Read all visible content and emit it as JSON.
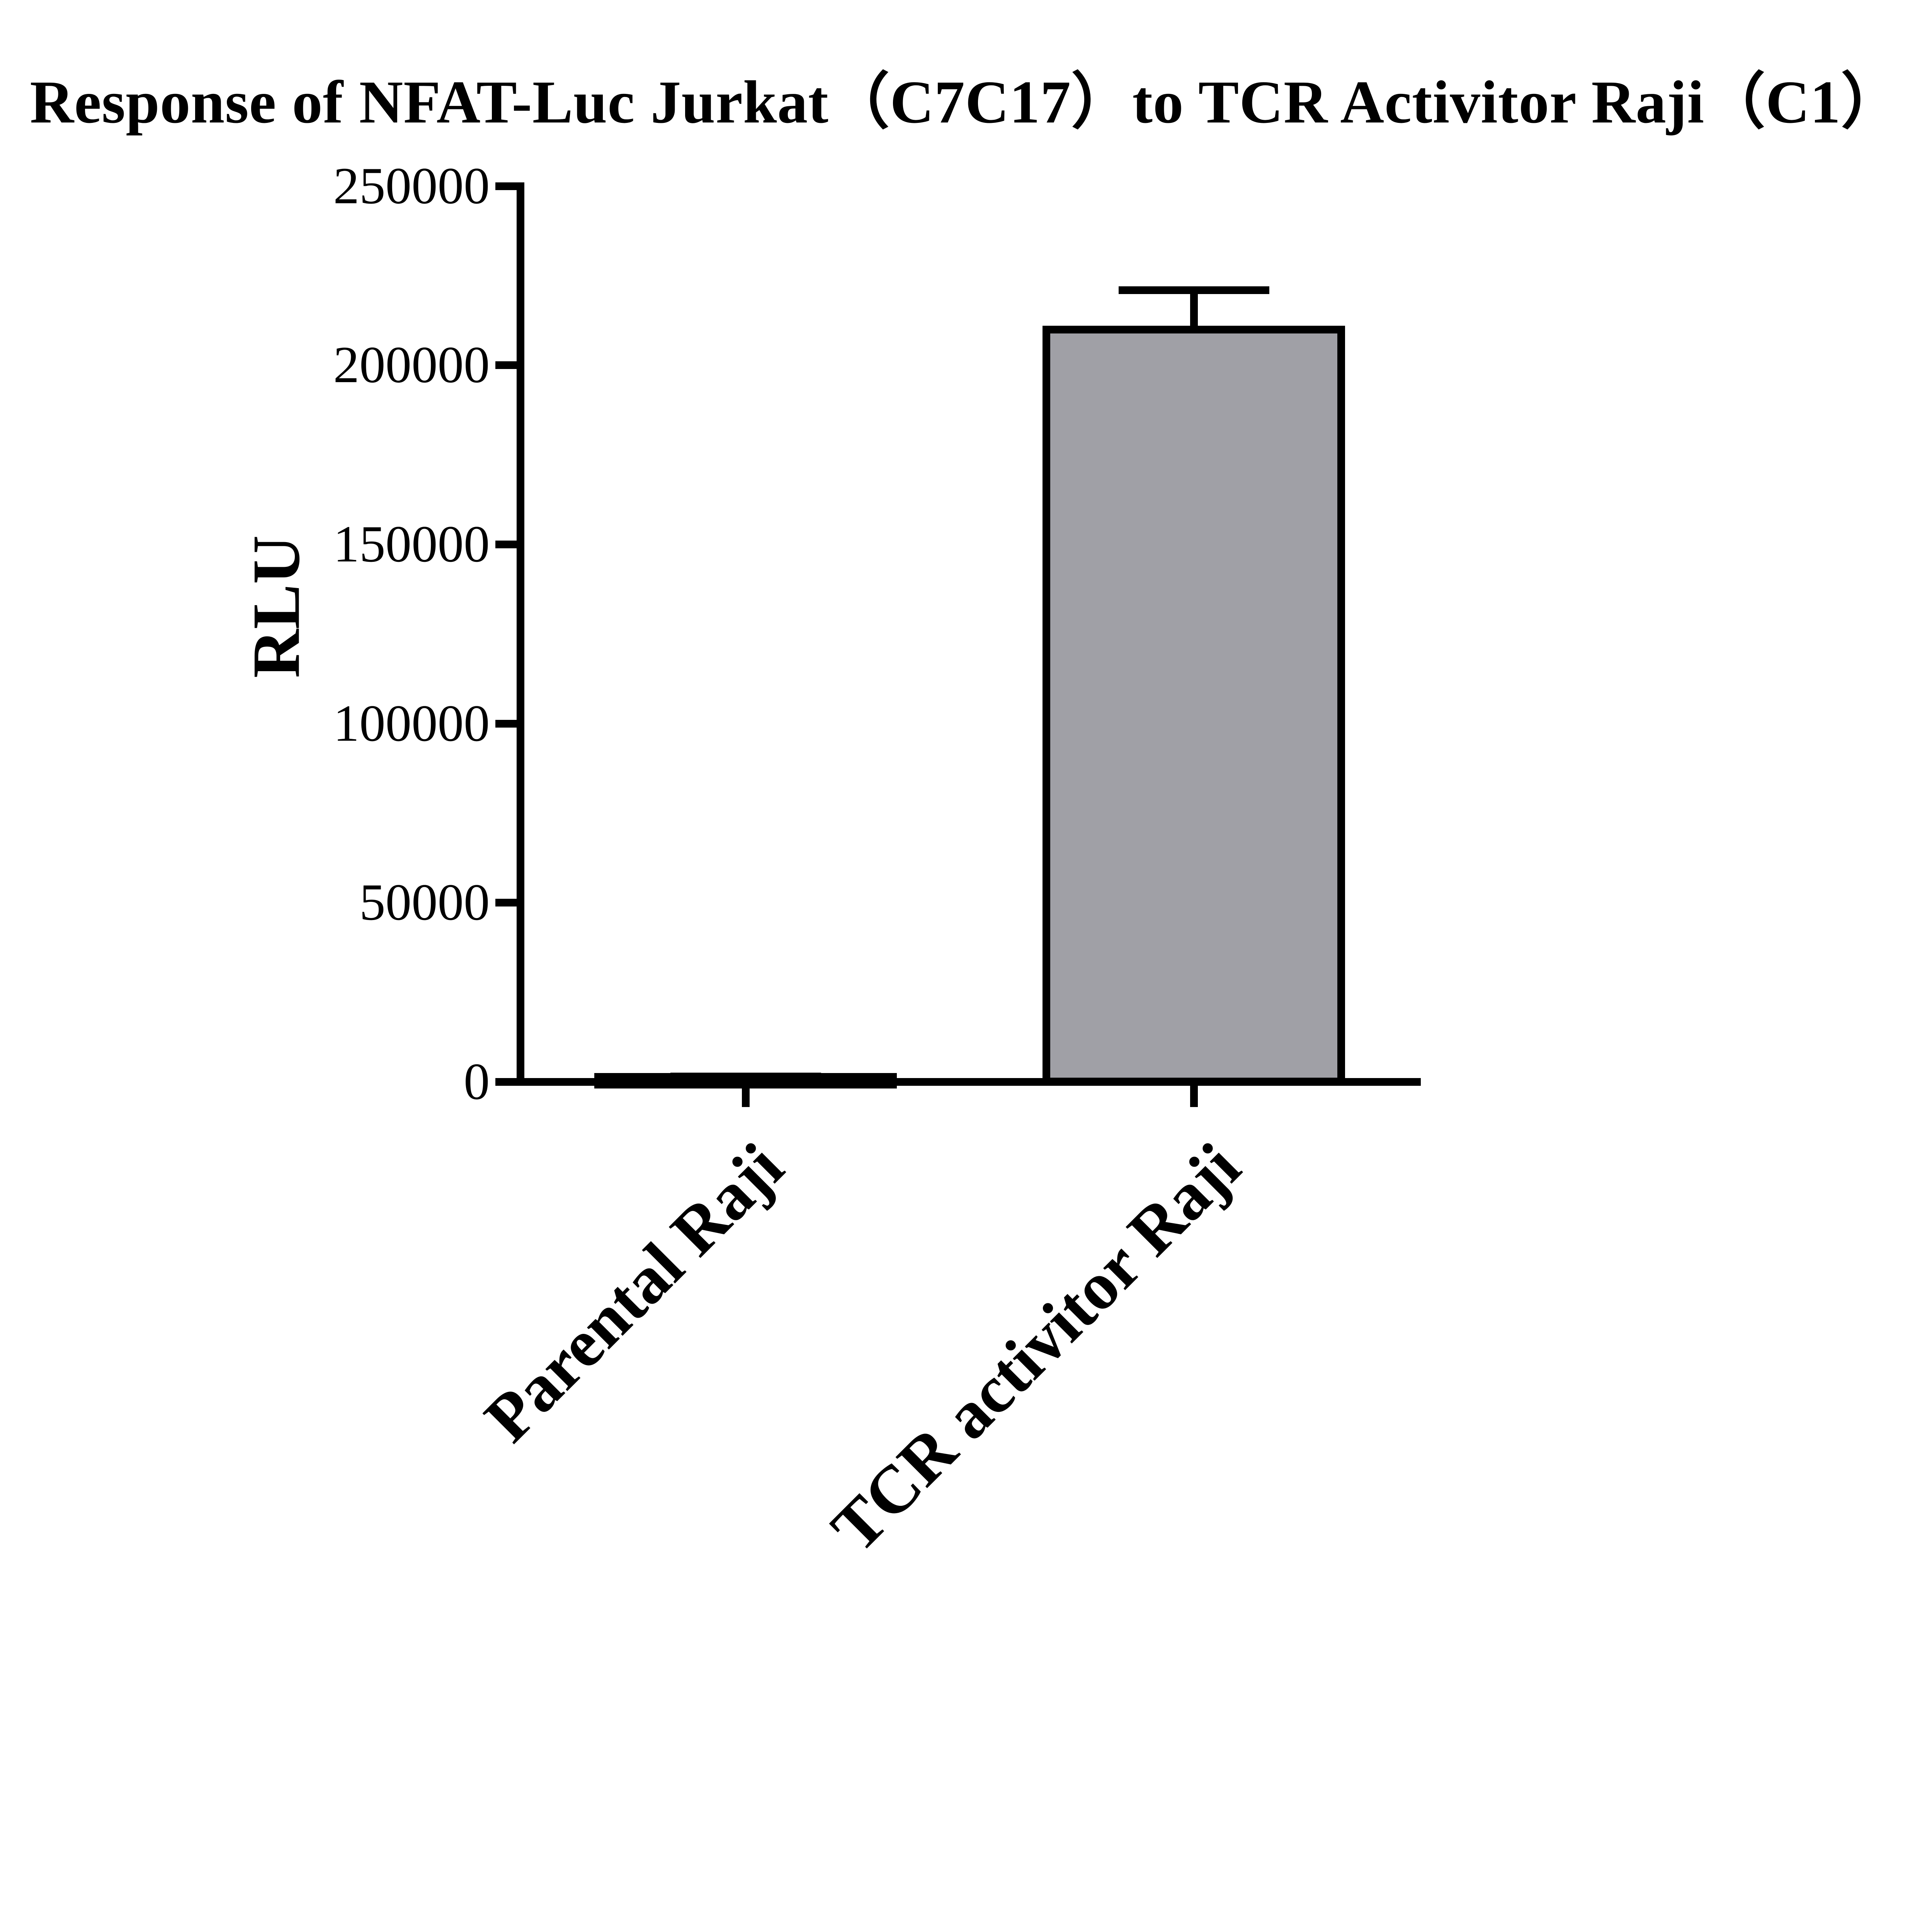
{
  "chart_data": {
    "type": "bar",
    "title": "Response of NFAT-Luc Jurkat（C7C17）to TCR Activitor Raji（C1）",
    "ylabel": "RLU",
    "categories": [
      "Parental Raji",
      "TCR activitor Raji"
    ],
    "values": [
      1500,
      211000
    ],
    "error_top": [
      2500,
      222000
    ],
    "ylim": [
      0,
      250000
    ],
    "yticks": [
      0,
      50000,
      100000,
      150000,
      200000,
      250000
    ],
    "ytick_labels_desc": [
      "250000",
      "200000",
      "150000",
      "100000",
      "50000",
      "0"
    ],
    "bar_fill": "#a0a0a6",
    "bar_edge": "#000000",
    "axis_color": "#000000",
    "background": "#ffffff",
    "grid": false,
    "legend": "none",
    "error_bar_style": "upper-only-with-cap",
    "category_label_rotation_deg": 45
  }
}
